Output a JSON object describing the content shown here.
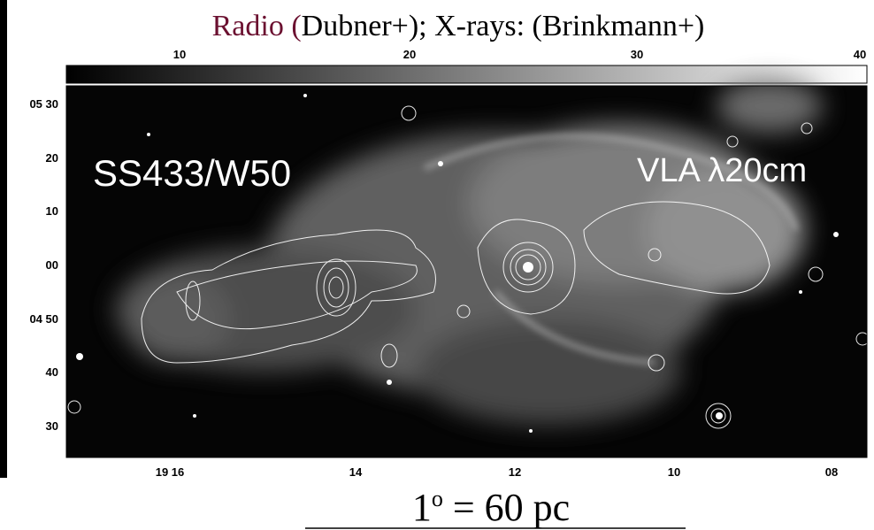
{
  "title": {
    "radio": "Radio (",
    "rest": "Dubner+);  X-rays: (Brinkmann+)"
  },
  "colorbar": {
    "ticks": [
      "10",
      "20",
      "30",
      "40"
    ]
  },
  "y_axis": {
    "ticks": [
      "05 30",
      "20",
      "10",
      "00",
      "04 50",
      "40",
      "30"
    ]
  },
  "x_axis": {
    "ticks": [
      "19 16",
      "14",
      "12",
      "10",
      "08"
    ]
  },
  "labels": {
    "object": "SS433/W50",
    "instrument": "VLA  λ20cm"
  },
  "scale": {
    "number": "1",
    "degree": "o",
    "rest": " = 60 pc"
  }
}
